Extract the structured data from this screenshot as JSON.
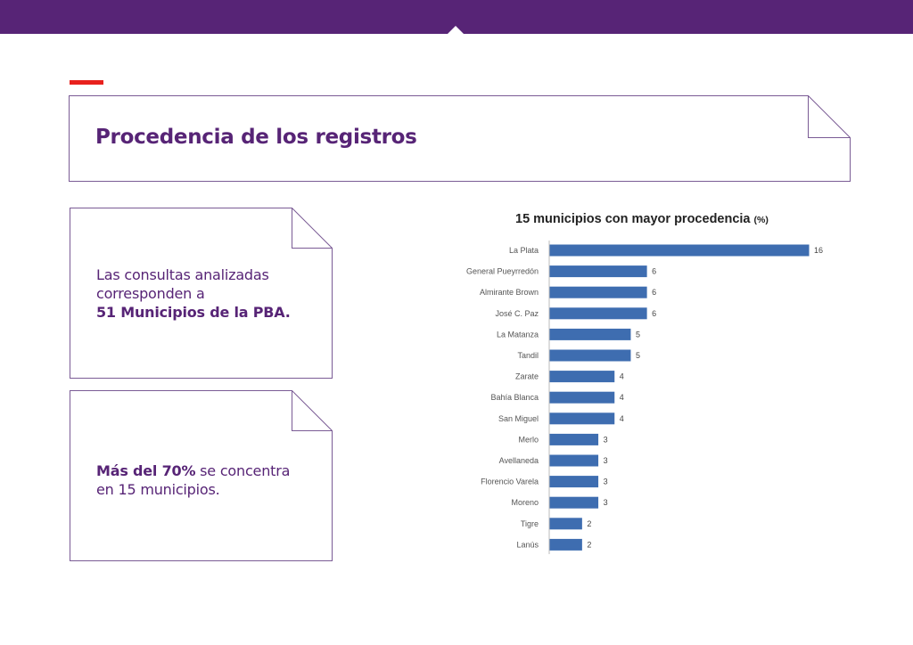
{
  "header": {
    "title": "Procedencia de los registros"
  },
  "notes": [
    {
      "lines": [
        "Las consultas analizadas",
        "corresponden a"
      ],
      "bold_line": "51 Municipios de la PBA."
    },
    {
      "bold": "Más del 70%",
      "rest": " se concentra",
      "line2": "en 15 municipios."
    }
  ],
  "colors": {
    "brand": "#572476",
    "accent": "#e8211d",
    "bar": "#3e6db0"
  },
  "chart_data": {
    "type": "bar",
    "orientation": "horizontal",
    "title": "15 municipios con mayor procedencia",
    "title_unit": "(%)",
    "categories": [
      "La Plata",
      "General Pueyrredón",
      "Almirante Brown",
      "José C. Paz",
      "La Matanza",
      "Tandil",
      "Zarate",
      "Bahía Blanca",
      "San Miguel",
      "Merlo",
      "Avellaneda",
      "Florencio Varela",
      "Moreno",
      "Tigre",
      "Lanús"
    ],
    "values": [
      16,
      6,
      6,
      6,
      5,
      5,
      4,
      4,
      4,
      3,
      3,
      3,
      3,
      2,
      2
    ],
    "xlim": [
      0,
      16
    ],
    "data_labels": true,
    "grid": false
  }
}
